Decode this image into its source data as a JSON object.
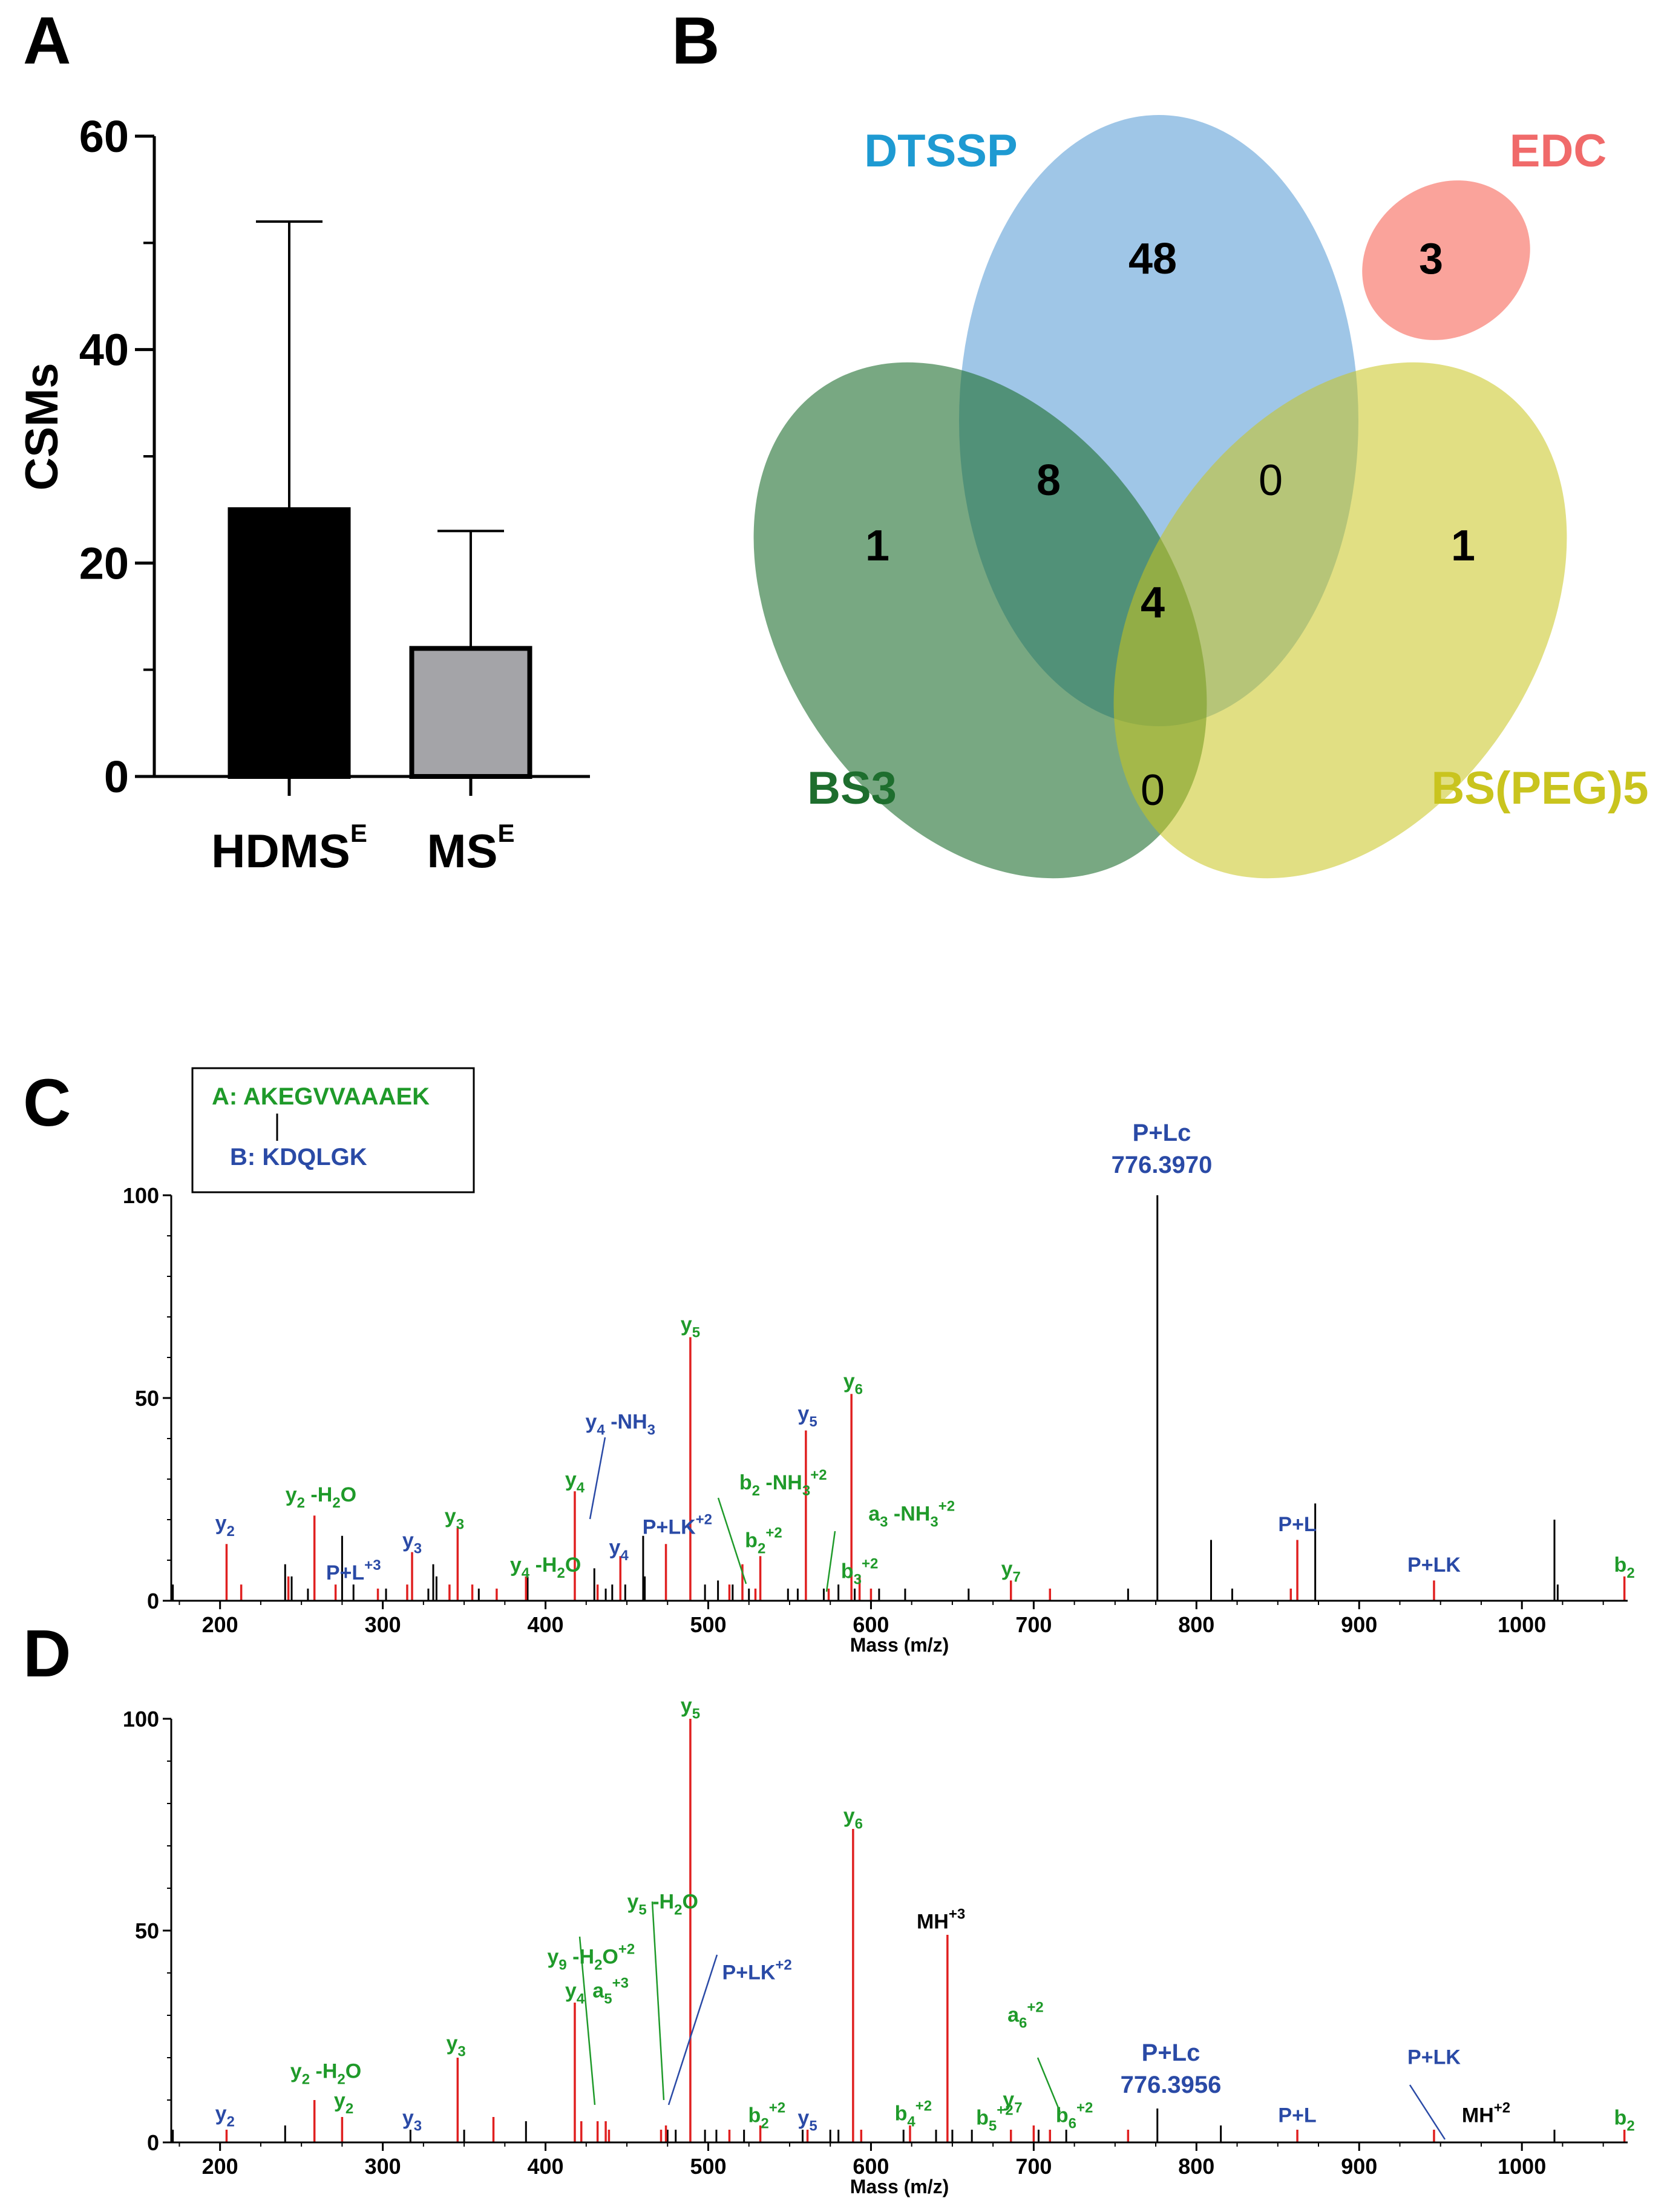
{
  "colors": {
    "green_label": "#1f9a2a",
    "blue_label": "#2a4aa6",
    "red_peak": "#e02020",
    "black_peak": "#000000",
    "dtssp_text": "#1e9ad2",
    "edc_text": "#f06a6a",
    "bs3_text": "#1e6e2e",
    "bspeg_text": "#c9c41e",
    "dtssp_fill": "#7fb3df",
    "edc_fill": "#f9938a",
    "bs3_fill": "#4e8a58",
    "bspeg_fill": "#d8d766",
    "bar1_fill": "#000000",
    "bar2_fill": "#a4a4a8"
  },
  "panel_letters": {
    "a": "A",
    "b": "B",
    "c": "C",
    "d": "D"
  },
  "chart_data": [
    {
      "panel": "A",
      "type": "bar",
      "ylabel": "CSMs",
      "ylim": [
        0,
        60
      ],
      "yticks": [
        0,
        20,
        40,
        60
      ],
      "categories": [
        {
          "main": "HDMS",
          "sup": "E"
        },
        {
          "main": "MS",
          "sup": "E"
        }
      ],
      "values": [
        25,
        12
      ],
      "errors": [
        27,
        11
      ]
    },
    {
      "panel": "B",
      "type": "venn",
      "sets": [
        {
          "name": "DTSSP"
        },
        {
          "name": "EDC"
        },
        {
          "name": "BS3"
        },
        {
          "name": "BS(PEG)5"
        }
      ],
      "counts": {
        "dtssp_only": "48",
        "edc_only": "3",
        "bs3_only": "1",
        "bspeg_only": "1",
        "dtssp_bs3": "8",
        "dtssp_bspeg": "0",
        "bs3_bspeg": "0",
        "dtssp_bs3_bspeg": "4"
      }
    },
    {
      "panel": "C",
      "type": "spectrum",
      "xlabel": "Mass (m/z)",
      "xlim": [
        170,
        1065
      ],
      "ylim": [
        0,
        100
      ],
      "xticks": [
        200,
        300,
        400,
        500,
        600,
        700,
        800,
        900,
        1000
      ],
      "yticks": [
        0,
        50,
        100
      ],
      "legend": {
        "a": "A: AKEGVVAAAEK",
        "b": "B: KDQLGK"
      },
      "main_peak": {
        "line1": "P+Lc",
        "line2": "776.3970"
      },
      "peaks_red": [
        [
          204,
          14
        ],
        [
          213,
          4
        ],
        [
          242,
          6
        ],
        [
          258,
          21
        ],
        [
          271,
          4
        ],
        [
          297,
          3
        ],
        [
          315,
          4
        ],
        [
          318,
          12
        ],
        [
          341,
          4
        ],
        [
          346,
          18
        ],
        [
          355,
          4
        ],
        [
          370,
          3
        ],
        [
          388,
          6
        ],
        [
          418,
          27
        ],
        [
          432,
          4
        ],
        [
          446,
          11
        ],
        [
          474,
          14
        ],
        [
          489,
          65
        ],
        [
          513,
          4
        ],
        [
          521,
          9
        ],
        [
          529,
          3
        ],
        [
          532,
          11
        ],
        [
          560,
          42
        ],
        [
          574,
          3
        ],
        [
          588,
          51
        ],
        [
          593,
          6
        ],
        [
          600,
          3
        ],
        [
          686,
          5
        ],
        [
          710,
          3
        ],
        [
          858,
          3
        ],
        [
          862,
          15
        ],
        [
          946,
          5
        ],
        [
          1063,
          6
        ]
      ],
      "peaks_black": [
        [
          170,
          22
        ],
        [
          171,
          4
        ],
        [
          240,
          9
        ],
        [
          244,
          6
        ],
        [
          254,
          3
        ],
        [
          275,
          16
        ],
        [
          282,
          4
        ],
        [
          302,
          3
        ],
        [
          328,
          3
        ],
        [
          331,
          9
        ],
        [
          333,
          6
        ],
        [
          359,
          3
        ],
        [
          389,
          6
        ],
        [
          430,
          8
        ],
        [
          437,
          3
        ],
        [
          441,
          4
        ],
        [
          449,
          4
        ],
        [
          460,
          16
        ],
        [
          461,
          6
        ],
        [
          498,
          4
        ],
        [
          506,
          5
        ],
        [
          515,
          4
        ],
        [
          521,
          4
        ],
        [
          525,
          3
        ],
        [
          549,
          3
        ],
        [
          555,
          3
        ],
        [
          571,
          3
        ],
        [
          580,
          4
        ],
        [
          590,
          3
        ],
        [
          605,
          3
        ],
        [
          621,
          3
        ],
        [
          660,
          3
        ],
        [
          758,
          3
        ],
        [
          776,
          100
        ],
        [
          809,
          15
        ],
        [
          822,
          3
        ],
        [
          873,
          24
        ],
        [
          1020,
          20
        ],
        [
          1022,
          4
        ]
      ],
      "annotations": [
        {
          "id": "y2",
          "color": "blue",
          "base": "y",
          "sub": "2",
          "x": 203,
          "y": 17.5
        },
        {
          "id": "y2-h2o",
          "color": "green",
          "base": "y",
          "sub": "2",
          "suffix": " -H",
          "sub2": "2",
          "suffix2": "O",
          "x": 262,
          "y": 24.5
        },
        {
          "id": "pl3",
          "color": "blue",
          "base": "P+L",
          "sup": "+3",
          "x": 282,
          "y": 5.2
        },
        {
          "id": "y3a",
          "color": "blue",
          "base": "y",
          "sub": "3",
          "x": 318,
          "y": 13.2
        },
        {
          "id": "y3b",
          "color": "green",
          "base": "y",
          "sub": "3",
          "x": 344,
          "y": 19.2
        },
        {
          "id": "y4-h2o",
          "color": "green",
          "base": "y",
          "sub": "4",
          "suffix": " -H",
          "sub2": "2",
          "suffix2": "O",
          "x": 400,
          "y": 7.2
        },
        {
          "id": "y4a",
          "color": "green",
          "base": "y",
          "sub": "4",
          "x": 418,
          "y": 28.2
        },
        {
          "id": "y4-nh3",
          "color": "blue",
          "base": "y",
          "sub": "4",
          "suffix": " -NH",
          "sub2": "3",
          "x": 446,
          "y": 42.5
        },
        {
          "id": "y4b",
          "color": "blue",
          "base": "y",
          "sub": "4",
          "x": 445,
          "y": 11.5
        },
        {
          "id": "plk2",
          "color": "blue",
          "base": "P+LK",
          "sup": "+2",
          "x": 481,
          "y": 16.5
        },
        {
          "id": "y5a",
          "color": "green",
          "base": "y",
          "sub": "5",
          "x": 489,
          "y": 66.5
        },
        {
          "id": "b2-nh3",
          "color": "green",
          "base": "b",
          "sub": "2",
          "suffix": " -NH",
          "sub2": "3",
          "sup": "+2",
          "x": 546,
          "y": 27.5
        },
        {
          "id": "b2a",
          "color": "green",
          "base": "b",
          "sub": "2",
          "sup": "+2",
          "x": 534,
          "y": 13.2
        },
        {
          "id": "y5b",
          "color": "blue",
          "base": "y",
          "sub": "5",
          "x": 561,
          "y": 44.5
        },
        {
          "id": "y6a",
          "color": "green",
          "base": "y",
          "sub": "6",
          "x": 589,
          "y": 52.5
        },
        {
          "id": "a3-nh3",
          "color": "green",
          "base": "a",
          "sub": "3",
          "suffix": " -NH",
          "sub2": "3",
          "sup": "+2",
          "x": 625,
          "y": 19.8
        },
        {
          "id": "b3",
          "color": "green",
          "base": "b",
          "sub": "3",
          "sup": "+2",
          "x": 593,
          "y": 5.6
        },
        {
          "id": "y7a",
          "color": "green",
          "base": "y",
          "sub": "7",
          "x": 686,
          "y": 6.2
        },
        {
          "id": "plc",
          "color": "blue",
          "base": "P+L",
          "x": 862,
          "y": 17.2
        },
        {
          "id": "plk",
          "color": "blue",
          "base": "P+LK",
          "x": 946,
          "y": 7.2
        },
        {
          "id": "b2b",
          "color": "green",
          "base": "b",
          "sub": "2",
          "x": 1063,
          "y": 7.2
        }
      ]
    },
    {
      "panel": "D",
      "type": "spectrum",
      "xlabel": "Mass (m/z)",
      "xlim": [
        170,
        1065
      ],
      "ylim": [
        0,
        100
      ],
      "xticks": [
        200,
        300,
        400,
        500,
        600,
        700,
        800,
        900,
        1000
      ],
      "yticks": [
        0,
        50,
        100
      ],
      "main_peak": {
        "line1": "P+Lc",
        "line2": "776.3956"
      },
      "peaks_red": [
        [
          204,
          3
        ],
        [
          258,
          10
        ],
        [
          275,
          6
        ],
        [
          346,
          20
        ],
        [
          368,
          6
        ],
        [
          418,
          33
        ],
        [
          422,
          5
        ],
        [
          432,
          5
        ],
        [
          437,
          5
        ],
        [
          439,
          3
        ],
        [
          471,
          3
        ],
        [
          474,
          4
        ],
        [
          489,
          100
        ],
        [
          513,
          3
        ],
        [
          532,
          4
        ],
        [
          561,
          3
        ],
        [
          589,
          74
        ],
        [
          594,
          3
        ],
        [
          624,
          4
        ],
        [
          647,
          49
        ],
        [
          686,
          3
        ],
        [
          700,
          4
        ],
        [
          710,
          3
        ],
        [
          758,
          3
        ],
        [
          862,
          3
        ],
        [
          946,
          3
        ],
        [
          1063,
          3
        ]
      ],
      "peaks_black": [
        [
          171,
          3
        ],
        [
          240,
          4
        ],
        [
          275,
          3
        ],
        [
          317,
          3
        ],
        [
          350,
          3
        ],
        [
          388,
          5
        ],
        [
          475,
          3
        ],
        [
          480,
          3
        ],
        [
          498,
          3
        ],
        [
          505,
          3
        ],
        [
          522,
          3
        ],
        [
          558,
          3
        ],
        [
          575,
          3
        ],
        [
          580,
          3
        ],
        [
          620,
          3
        ],
        [
          640,
          3
        ],
        [
          650,
          3
        ],
        [
          662,
          3
        ],
        [
          703,
          3
        ],
        [
          720,
          3
        ],
        [
          776,
          8
        ],
        [
          815,
          4
        ],
        [
          1020,
          3
        ]
      ],
      "annotations": [
        {
          "id": "y2a",
          "color": "blue",
          "base": "y",
          "sub": "2",
          "x": 203,
          "y": 5.2
        },
        {
          "id": "y2-h2o",
          "color": "green",
          "base": "y",
          "sub": "2",
          "suffix": " -H",
          "sub2": "2",
          "suffix2": "O",
          "x": 265,
          "y": 15.2
        },
        {
          "id": "y2b",
          "color": "green",
          "base": "y",
          "sub": "2",
          "x": 276,
          "y": 8.3
        },
        {
          "id": "y3a",
          "color": "blue",
          "base": "y",
          "sub": "3",
          "x": 318,
          "y": 4.2
        },
        {
          "id": "y3b",
          "color": "green",
          "base": "y",
          "sub": "3",
          "x": 345,
          "y": 21.8
        },
        {
          "id": "y4",
          "color": "green",
          "base": "y",
          "sub": "4",
          "x": 418,
          "y": 34.2
        },
        {
          "id": "a5",
          "color": "green",
          "base": "a",
          "sub": "5",
          "sup": "+3",
          "x": 440,
          "y": 34.2
        },
        {
          "id": "y9-h2o",
          "color": "green",
          "base": "y",
          "sub": "9",
          "suffix": " -H",
          "sub2": "2",
          "suffix2": "O",
          "sup": "+2",
          "x": 428,
          "y": 42.2
        },
        {
          "id": "y5-h2o",
          "color": "green",
          "base": "y",
          "sub": "5",
          "suffix": " -H",
          "sub2": "2",
          "suffix2": "O",
          "x": 472,
          "y": 55.2
        },
        {
          "id": "plk2",
          "color": "blue",
          "base": "P+LK",
          "sup": "+2",
          "x": 530,
          "y": 38.5
        },
        {
          "id": "y5a",
          "color": "green",
          "base": "y",
          "sub": "5",
          "x": 489,
          "y": 101.5
        },
        {
          "id": "b2",
          "color": "green",
          "base": "b",
          "sub": "2",
          "sup": "+2",
          "x": 536,
          "y": 4.8
        },
        {
          "id": "y5b",
          "color": "blue",
          "base": "y",
          "sub": "5",
          "x": 561,
          "y": 4.2
        },
        {
          "id": "y6",
          "color": "green",
          "base": "y",
          "sub": "6",
          "x": 589,
          "y": 75.5
        },
        {
          "id": "b4",
          "color": "green",
          "base": "b",
          "sub": "4",
          "sup": "+2",
          "x": 626,
          "y": 5.2
        },
        {
          "id": "mh3",
          "color": "black",
          "base": "MH",
          "sup": "+3",
          "x": 643,
          "y": 50.5
        },
        {
          "id": "b5",
          "color": "green",
          "base": "b",
          "sub": "5",
          "sup": "+2",
          "x": 676,
          "y": 4.2
        },
        {
          "id": "y7",
          "color": "green",
          "base": "y",
          "sub": "7",
          "x": 687,
          "y": 8.5
        },
        {
          "id": "a6",
          "color": "green",
          "base": "a",
          "sub": "6",
          "sup": "+2",
          "x": 695,
          "y": 28.5
        },
        {
          "id": "b6",
          "color": "green",
          "base": "b",
          "sub": "6",
          "sup": "+2",
          "x": 725,
          "y": 4.8
        },
        {
          "id": "pl",
          "color": "blue",
          "base": "P+L",
          "x": 862,
          "y": 4.8
        },
        {
          "id": "plk",
          "color": "blue",
          "base": "P+LK",
          "x": 946,
          "y": 18.5
        },
        {
          "id": "mh2",
          "color": "black",
          "base": "MH",
          "sup": "+2",
          "x": 978,
          "y": 4.8
        },
        {
          "id": "b2c",
          "color": "green",
          "base": "b",
          "sub": "2",
          "x": 1063,
          "y": 4.2
        }
      ]
    }
  ]
}
